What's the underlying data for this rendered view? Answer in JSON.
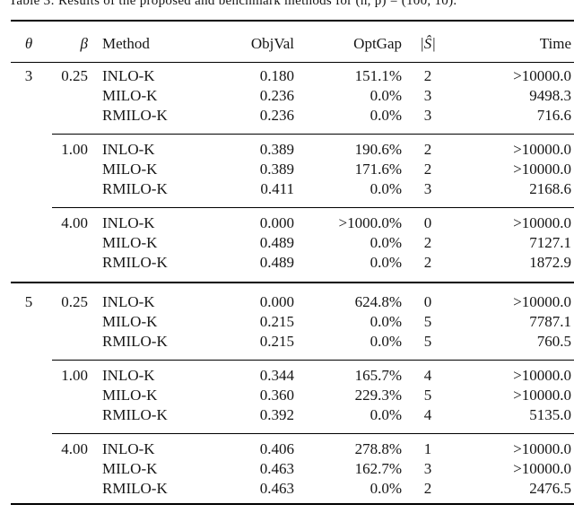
{
  "caption": {
    "clipped_text": "Table 3: Results of the proposed and benchmark methods for (n, p) = (100, 10)."
  },
  "table": {
    "headers": {
      "theta": "θ",
      "beta": "β",
      "method": "Method",
      "objval": "ObjVal",
      "optgap": "OptGap",
      "s_hat": "|Ŝ|",
      "time": "Time"
    },
    "groups": [
      {
        "theta": "3",
        "blocks": [
          {
            "beta": "0.25",
            "rows": [
              {
                "method": "INLO-K",
                "objval": "0.180",
                "optgap": "151.1%",
                "s": "2",
                "time": ">10000.0"
              },
              {
                "method": "MILO-K",
                "objval": "0.236",
                "optgap": "0.0%",
                "s": "3",
                "time": "9498.3"
              },
              {
                "method": "RMILO-K",
                "objval": "0.236",
                "optgap": "0.0%",
                "s": "3",
                "time": "716.6"
              }
            ]
          },
          {
            "beta": "1.00",
            "rows": [
              {
                "method": "INLO-K",
                "objval": "0.389",
                "optgap": "190.6%",
                "s": "2",
                "time": ">10000.0"
              },
              {
                "method": "MILO-K",
                "objval": "0.389",
                "optgap": "171.6%",
                "s": "2",
                "time": ">10000.0"
              },
              {
                "method": "RMILO-K",
                "objval": "0.411",
                "optgap": "0.0%",
                "s": "3",
                "time": "2168.6"
              }
            ]
          },
          {
            "beta": "4.00",
            "rows": [
              {
                "method": "INLO-K",
                "objval": "0.000",
                "optgap": ">1000.0%",
                "s": "0",
                "time": ">10000.0"
              },
              {
                "method": "MILO-K",
                "objval": "0.489",
                "optgap": "0.0%",
                "s": "2",
                "time": "7127.1"
              },
              {
                "method": "RMILO-K",
                "objval": "0.489",
                "optgap": "0.0%",
                "s": "2",
                "time": "1872.9"
              }
            ]
          }
        ]
      },
      {
        "theta": "5",
        "blocks": [
          {
            "beta": "0.25",
            "rows": [
              {
                "method": "INLO-K",
                "objval": "0.000",
                "optgap": "624.8%",
                "s": "0",
                "time": ">10000.0"
              },
              {
                "method": "MILO-K",
                "objval": "0.215",
                "optgap": "0.0%",
                "s": "5",
                "time": "7787.1"
              },
              {
                "method": "RMILO-K",
                "objval": "0.215",
                "optgap": "0.0%",
                "s": "5",
                "time": "760.5"
              }
            ]
          },
          {
            "beta": "1.00",
            "rows": [
              {
                "method": "INLO-K",
                "objval": "0.344",
                "optgap": "165.7%",
                "s": "4",
                "time": ">10000.0"
              },
              {
                "method": "MILO-K",
                "objval": "0.360",
                "optgap": "229.3%",
                "s": "5",
                "time": ">10000.0"
              },
              {
                "method": "RMILO-K",
                "objval": "0.392",
                "optgap": "0.0%",
                "s": "4",
                "time": "5135.0"
              }
            ]
          },
          {
            "beta": "4.00",
            "rows": [
              {
                "method": "INLO-K",
                "objval": "0.406",
                "optgap": "278.8%",
                "s": "1",
                "time": ">10000.0"
              },
              {
                "method": "MILO-K",
                "objval": "0.463",
                "optgap": "162.7%",
                "s": "3",
                "time": ">10000.0"
              },
              {
                "method": "RMILO-K",
                "objval": "0.463",
                "optgap": "0.0%",
                "s": "2",
                "time": "2476.5"
              }
            ]
          }
        ]
      }
    ]
  }
}
